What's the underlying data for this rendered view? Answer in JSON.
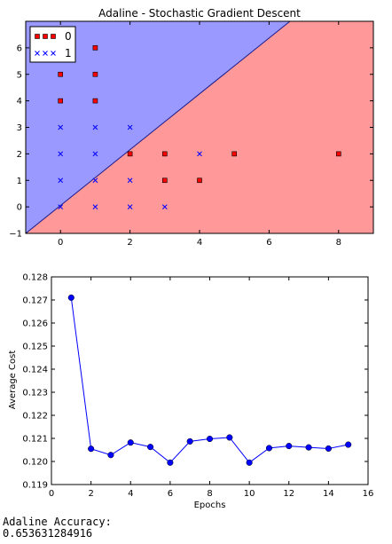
{
  "chart_data": [
    {
      "type": "scatter",
      "title": "Adaline - Stochastic Gradient Descent",
      "xlabel": "",
      "ylabel": "",
      "xlim": [
        -1,
        9
      ],
      "ylim": [
        -1,
        7
      ],
      "x_ticks": [
        0,
        2,
        4,
        6,
        8
      ],
      "y_ticks": [
        -1,
        0,
        1,
        2,
        3,
        4,
        5,
        6
      ],
      "grid": false,
      "legend_position": "top-left",
      "decision_regions": {
        "boundary_line": [
          [
            -1,
            -1
          ],
          [
            6.6,
            7
          ]
        ],
        "upper_left_class": "1",
        "lower_right_class": "0",
        "colors": {
          "0": "#ff9999",
          "1": "#9999ff"
        }
      },
      "series": [
        {
          "name": "0",
          "marker": "s",
          "color": "#ff0000",
          "points": [
            [
              0,
              5
            ],
            [
              0,
              4
            ],
            [
              1,
              6
            ],
            [
              1,
              5
            ],
            [
              1,
              4
            ],
            [
              2,
              2
            ],
            [
              3,
              2
            ],
            [
              3,
              1
            ],
            [
              4,
              1
            ],
            [
              5,
              2
            ],
            [
              8,
              2
            ]
          ]
        },
        {
          "name": "1",
          "marker": "x",
          "color": "#0000ff",
          "points": [
            [
              0,
              3
            ],
            [
              0,
              2
            ],
            [
              0,
              1
            ],
            [
              0,
              0
            ],
            [
              1,
              3
            ],
            [
              1,
              2
            ],
            [
              1,
              1
            ],
            [
              1,
              0
            ],
            [
              2,
              3
            ],
            [
              2,
              1
            ],
            [
              2,
              0
            ],
            [
              3,
              0
            ],
            [
              4,
              2
            ]
          ]
        }
      ]
    },
    {
      "type": "line",
      "title": "",
      "xlabel": "Epochs",
      "ylabel": "Average Cost",
      "xlim": [
        0,
        16
      ],
      "ylim": [
        0.119,
        0.128
      ],
      "x_ticks": [
        0,
        2,
        4,
        6,
        8,
        10,
        12,
        14,
        16
      ],
      "y_ticks": [
        "0.119",
        "0.120",
        "0.121",
        "0.122",
        "0.123",
        "0.124",
        "0.125",
        "0.126",
        "0.127",
        "0.128"
      ],
      "grid": false,
      "color": "#0000ff",
      "marker": "o",
      "x": [
        1,
        2,
        3,
        4,
        5,
        6,
        7,
        8,
        9,
        10,
        11,
        12,
        13,
        14,
        15
      ],
      "y": [
        0.1271,
        0.12055,
        0.12028,
        0.12082,
        0.12063,
        0.11995,
        0.12087,
        0.12098,
        0.12104,
        0.11995,
        0.12058,
        0.12067,
        0.12061,
        0.12056,
        0.12073
      ]
    }
  ],
  "output": {
    "accuracy_label": "Adaline Accuracy:",
    "accuracy_value": "0.653631284916"
  }
}
